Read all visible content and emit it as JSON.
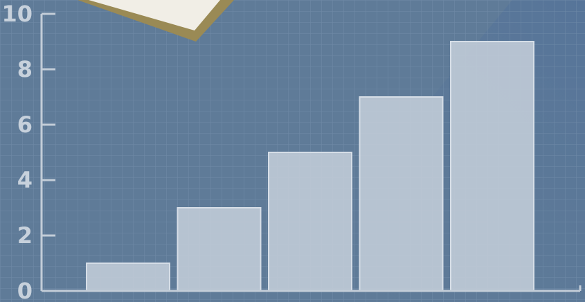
{
  "chart_data": {
    "type": "bar",
    "title": "",
    "xlabel": "",
    "ylabel": "",
    "categories": [
      "",
      "",
      "",
      "",
      ""
    ],
    "values": [
      1,
      3,
      5,
      7,
      9
    ],
    "ylim": [
      0,
      10
    ],
    "y_ticks": [
      0,
      2,
      4,
      6,
      8,
      10
    ],
    "y_tick_labels": [
      "0",
      "2",
      "4",
      "6",
      "8",
      "10"
    ],
    "grid": true,
    "colors": {
      "background": "#5f7b98",
      "grid": "#7f98b2",
      "axis": "#c3cdd8",
      "tick_label": "#c7d1dc",
      "bar_fill": "#c3cdd8",
      "bar_edge": "#d6dee7",
      "note_paper": "#f1eee6",
      "note_border": "#9a8a55"
    }
  }
}
